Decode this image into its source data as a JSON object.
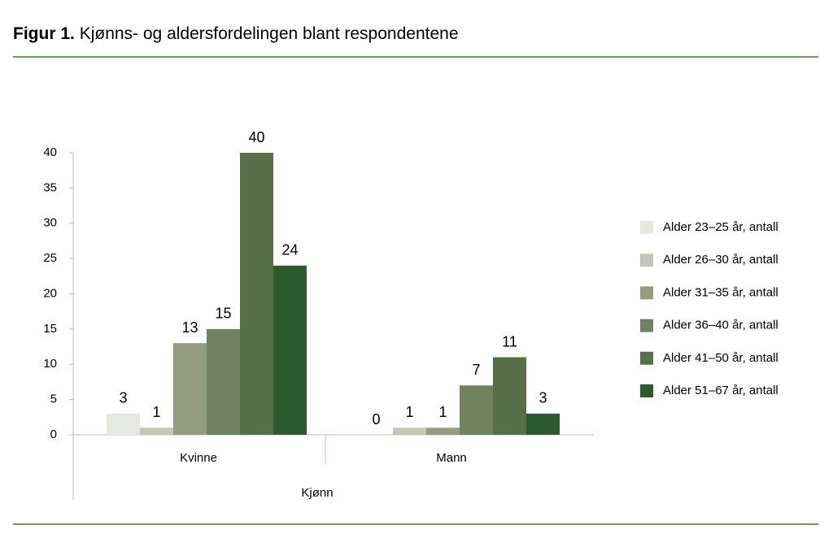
{
  "chart_data": {
    "type": "bar",
    "figure_label": "Figur 1.",
    "title": "Kjønns- og aldersfordelingen blant respondentene",
    "xlabel": "Kjønn",
    "categories": [
      "Kvinne",
      "Mann"
    ],
    "series": [
      {
        "name": "Alder 23–25 år, antall",
        "color": "#e6e8e2",
        "values": [
          3,
          0
        ]
      },
      {
        "name": "Alder 26–30 år, antall",
        "color": "#c4c6b4",
        "values": [
          1,
          1
        ]
      },
      {
        "name": "Alder 31–35 år, antall",
        "color": "#959c80",
        "values": [
          13,
          1
        ]
      },
      {
        "name": "Alder 36–40 år, antall",
        "color": "#6e8360",
        "values": [
          15,
          7
        ]
      },
      {
        "name": "Alder 41–50 år, antall",
        "color": "#566f48",
        "values": [
          40,
          11
        ]
      },
      {
        "name": "Alder 51–67 år, antall",
        "color": "#2a5a2e",
        "values": [
          24,
          3
        ]
      }
    ],
    "ylim": [
      0,
      40
    ],
    "yticks": [
      0,
      5,
      10,
      15,
      20,
      25,
      30,
      35,
      40
    ],
    "legend": "right",
    "data_labels": true
  }
}
